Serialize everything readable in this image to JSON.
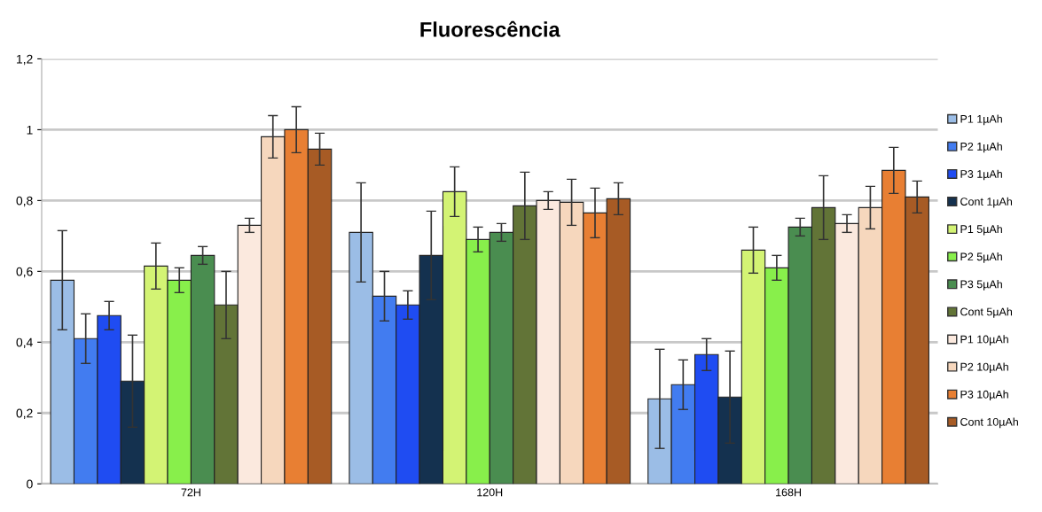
{
  "chart_data": {
    "type": "bar",
    "title": "Fluorescência",
    "categories": [
      "72H",
      "120H",
      "168H"
    ],
    "ylim": [
      0,
      1.2
    ],
    "yticks": [
      0,
      {
        "value": 0.2,
        "label": "0,2"
      },
      {
        "value": 0.4,
        "label": "0,4"
      },
      {
        "value": 0.6,
        "label": "0,6"
      },
      {
        "value": 0.8,
        "label": "0,8"
      },
      1,
      {
        "value": 1.2,
        "label": "1,2"
      }
    ],
    "grid": "y",
    "legend": "right",
    "series": [
      {
        "name": "P1 1µAh",
        "color": "#9bbde6",
        "values": [
          0.575,
          0.71,
          0.24
        ],
        "errors": [
          0.14,
          0.14,
          0.14
        ]
      },
      {
        "name": "P2 1µAh",
        "color": "#427cf0",
        "values": [
          0.41,
          0.53,
          0.28
        ],
        "errors": [
          0.07,
          0.07,
          0.07
        ]
      },
      {
        "name": "P3 1µAh",
        "color": "#1f4cf2",
        "values": [
          0.475,
          0.505,
          0.365
        ],
        "errors": [
          0.04,
          0.04,
          0.045
        ]
      },
      {
        "name": "Cont 1µAh",
        "color": "#14314f",
        "values": [
          0.29,
          0.645,
          0.245
        ],
        "errors": [
          0.13,
          0.125,
          0.13
        ]
      },
      {
        "name": "P1 5µAh",
        "color": "#d3f374",
        "values": [
          0.615,
          0.825,
          0.66
        ],
        "errors": [
          0.065,
          0.07,
          0.065
        ]
      },
      {
        "name": "P2 5µAh",
        "color": "#88ef4b",
        "values": [
          0.575,
          0.69,
          0.61
        ],
        "errors": [
          0.035,
          0.035,
          0.035
        ]
      },
      {
        "name": "P3 5µAh",
        "color": "#4a8d50",
        "values": [
          0.645,
          0.71,
          0.725
        ],
        "errors": [
          0.025,
          0.025,
          0.025
        ]
      },
      {
        "name": "Cont 5µAh",
        "color": "#627437",
        "values": [
          0.505,
          0.785,
          0.78
        ],
        "errors": [
          0.095,
          0.095,
          0.09
        ]
      },
      {
        "name": "P1 10µAh",
        "color": "#fbe9de",
        "values": [
          0.73,
          0.8,
          0.735
        ],
        "errors": [
          0.02,
          0.025,
          0.025
        ]
      },
      {
        "name": "P2 10µAh",
        "color": "#f6d7bd",
        "values": [
          0.98,
          0.795,
          0.78
        ],
        "errors": [
          0.06,
          0.065,
          0.06
        ]
      },
      {
        "name": "P3 10µAh",
        "color": "#e87f33",
        "values": [
          1.0,
          0.765,
          0.885
        ],
        "errors": [
          0.065,
          0.07,
          0.065
        ]
      },
      {
        "name": "Cont 10µAh",
        "color": "#a75b25",
        "values": [
          0.945,
          0.805,
          0.81
        ],
        "errors": [
          0.045,
          0.045,
          0.045
        ]
      }
    ]
  }
}
